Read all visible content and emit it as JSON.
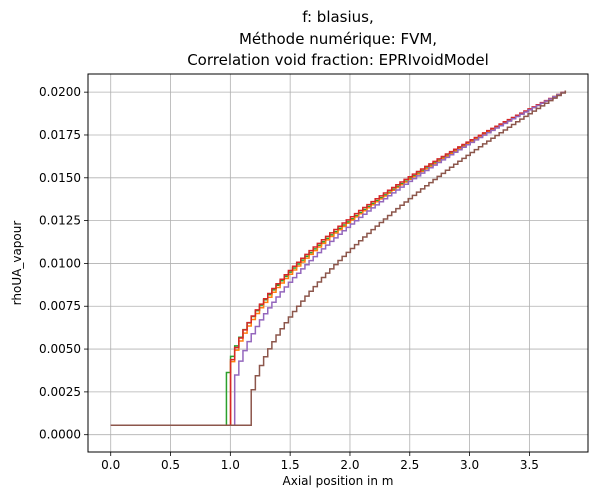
{
  "chart_data": {
    "type": "line",
    "title_lines": [
      "f: blasius,",
      "Méthode numérique: FVM,",
      "Correlation void fraction: EPRIvoidModel"
    ],
    "xlabel": "Axial position in m",
    "ylabel": "rhoUA_vapour",
    "xlim": [
      -0.19,
      3.99
    ],
    "ylim": [
      -0.00101,
      0.02106
    ],
    "xticks": [
      0.0,
      0.5,
      1.0,
      1.5,
      2.0,
      2.5,
      3.0,
      3.5
    ],
    "xtick_labels": [
      "0.0",
      "0.5",
      "1.0",
      "1.5",
      "2.0",
      "2.5",
      "3.0",
      "3.5"
    ],
    "yticks": [
      0.0,
      0.0025,
      0.005,
      0.0075,
      0.01,
      0.0125,
      0.015,
      0.0175,
      0.02
    ],
    "ytick_labels": [
      "0.0000",
      "0.0025",
      "0.0050",
      "0.0075",
      "0.0100",
      "0.0125",
      "0.0150",
      "0.0175",
      "0.0200"
    ],
    "grid": true,
    "step": true,
    "x_end": 3.8,
    "y_start": 0.00055,
    "y_end": 0.0201,
    "series": [
      {
        "color": "#2ca02c",
        "onset": 0.96,
        "y_onset": 0.0031,
        "shape": 0.58
      },
      {
        "color": "#ff7f0e",
        "onset": 0.97,
        "y_onset": 0.003,
        "shape": 0.58
      },
      {
        "color": "#d62728",
        "onset": 0.97,
        "y_onset": 0.003,
        "shape": 0.56
      },
      {
        "color": "#9467bd",
        "onset": 1.01,
        "y_onset": 0.0021,
        "shape": 0.55
      },
      {
        "color": "#8c564b",
        "onset": 1.16,
        "y_onset": 0.0019,
        "shape": 0.62
      }
    ]
  }
}
